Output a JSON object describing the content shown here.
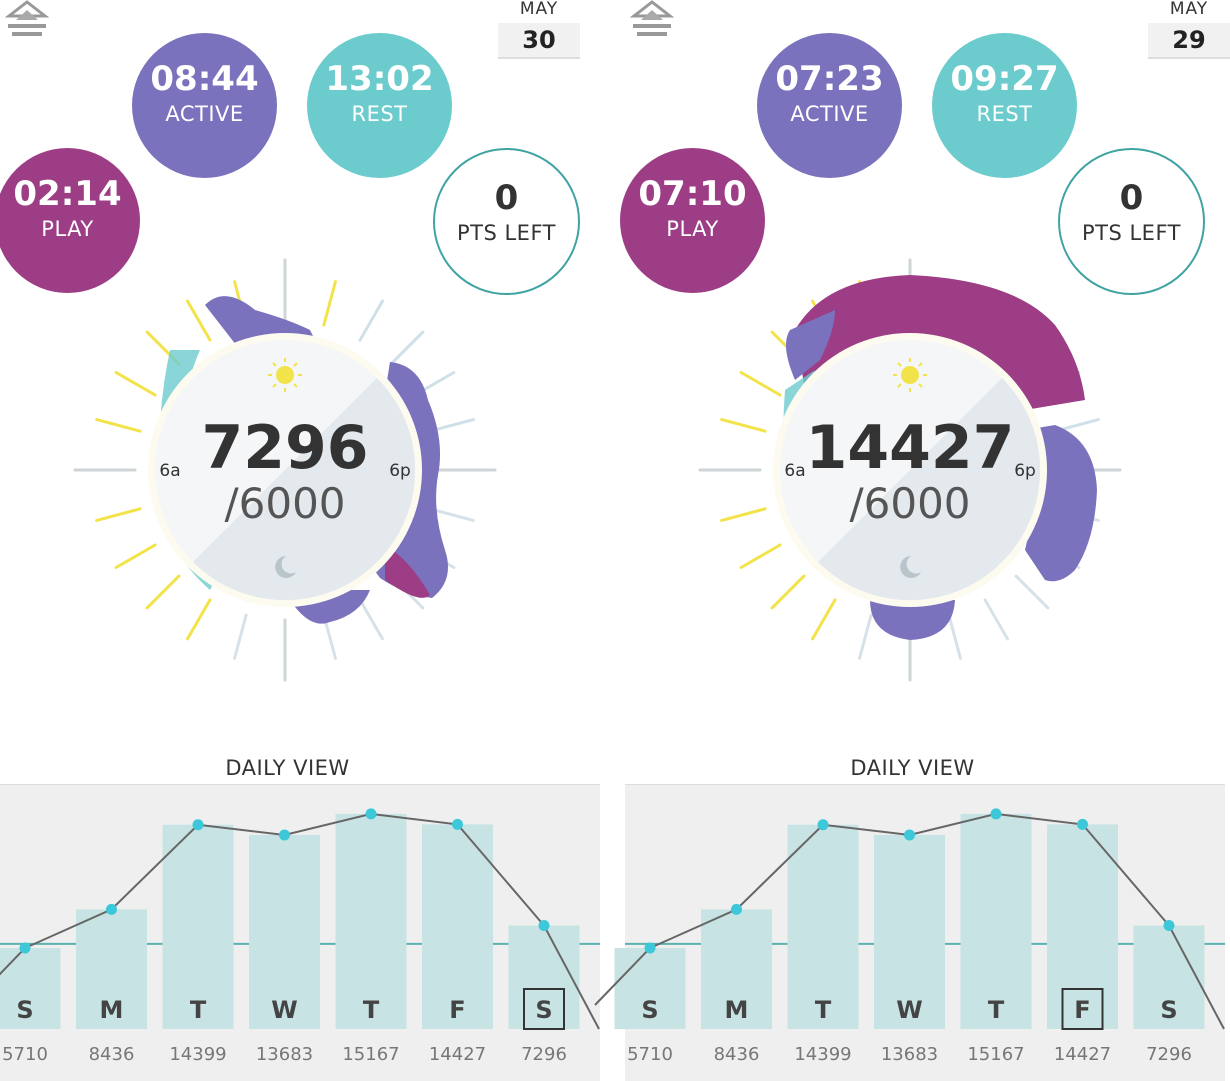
{
  "panels": [
    {
      "date": {
        "month": "MAY",
        "day": "30"
      },
      "stats": {
        "active": {
          "value": "08:44",
          "label": "ACTIVE"
        },
        "rest": {
          "value": "13:02",
          "label": "REST"
        },
        "play": {
          "value": "02:14",
          "label": "PLAY"
        },
        "points": {
          "value": "0",
          "label": "PTS LEFT"
        }
      },
      "dial": {
        "steps": "7296",
        "goal": "/6000",
        "am_label": "6a",
        "pm_label": "6p"
      },
      "daily_view": {
        "title": "DAILY VIEW",
        "selected_index": 6,
        "days": [
          {
            "label": "S",
            "value": "5710"
          },
          {
            "label": "M",
            "value": "8436"
          },
          {
            "label": "T",
            "value": "14399"
          },
          {
            "label": "W",
            "value": "13683"
          },
          {
            "label": "T",
            "value": "15167"
          },
          {
            "label": "F",
            "value": "14427"
          },
          {
            "label": "S",
            "value": "7296"
          }
        ]
      }
    },
    {
      "date": {
        "month": "MAY",
        "day": "29"
      },
      "stats": {
        "active": {
          "value": "07:23",
          "label": "ACTIVE"
        },
        "rest": {
          "value": "09:27",
          "label": "REST"
        },
        "play": {
          "value": "07:10",
          "label": "PLAY"
        },
        "points": {
          "value": "0",
          "label": "PTS LEFT"
        }
      },
      "dial": {
        "steps": "14427",
        "goal": "/6000",
        "am_label": "6a",
        "pm_label": "6p"
      },
      "daily_view": {
        "title": "DAILY VIEW",
        "selected_index": 5,
        "days": [
          {
            "label": "S",
            "value": "5710"
          },
          {
            "label": "M",
            "value": "8436"
          },
          {
            "label": "T",
            "value": "14399"
          },
          {
            "label": "W",
            "value": "13683"
          },
          {
            "label": "T",
            "value": "15167"
          },
          {
            "label": "F",
            "value": "14427"
          },
          {
            "label": "S",
            "value": "7296"
          }
        ]
      }
    }
  ],
  "colors": {
    "active": "#7a72bd",
    "rest": "#6ccbcd",
    "play": "#9c3d85",
    "points_border": "#3fa3a3",
    "chart_bar": "#c7e3e3",
    "chart_line": "#666666",
    "chart_dot": "#3cc8d8",
    "goal_line": "#5ab3b0",
    "sun_ray": "#f3e34a"
  },
  "icons": [
    "tree-logo-icon",
    "sun-icon",
    "moon-icon"
  ]
}
